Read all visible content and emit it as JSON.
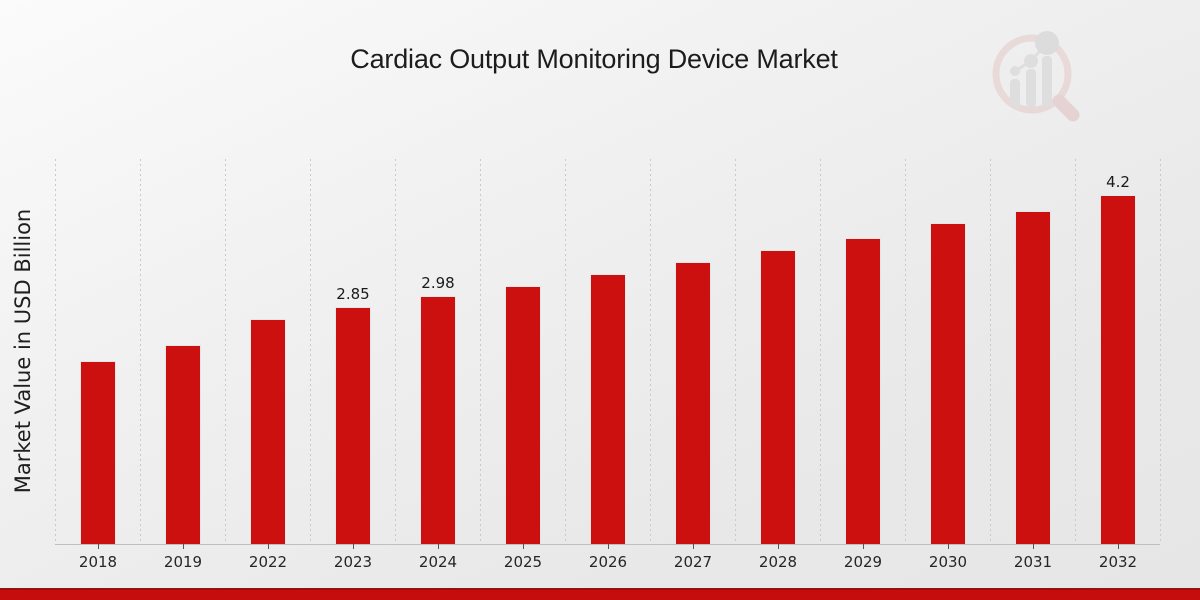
{
  "title": "Cardiac Output Monitoring Device Market",
  "watermark": "market-research-future-magnifier-bar-chart-logo",
  "chart_data": {
    "type": "bar",
    "title": "Cardiac Output Monitoring Device Market",
    "xlabel": "",
    "ylabel": "Market Value in USD Billion",
    "categories": [
      "2018",
      "2019",
      "2022",
      "2023",
      "2024",
      "2025",
      "2026",
      "2027",
      "2028",
      "2029",
      "2030",
      "2031",
      "2032"
    ],
    "values": [
      2.2,
      2.39,
      2.7,
      2.85,
      2.98,
      3.1,
      3.25,
      3.39,
      3.53,
      3.68,
      3.86,
      4.01,
      4.2
    ],
    "value_labels": {
      "2023": "2.85",
      "2024": "2.98",
      "2032": "4.2"
    },
    "ylim": [
      0,
      4.63
    ],
    "grid": "vertical-dashed",
    "legend": "none",
    "y_axis_ticks_visible": false
  },
  "colors": {
    "bar": "#cc1010",
    "bar_edge": "#e6e6e6",
    "gridline": "#c9c9c9",
    "axis_line": "#bfbfbf",
    "text": "#1f1f1f",
    "footer_band": "#c50d0d",
    "footer_band_edge": "#990f0f",
    "logo_ring": "#e5c9c9",
    "logo_bars": "#d2d2d2"
  }
}
